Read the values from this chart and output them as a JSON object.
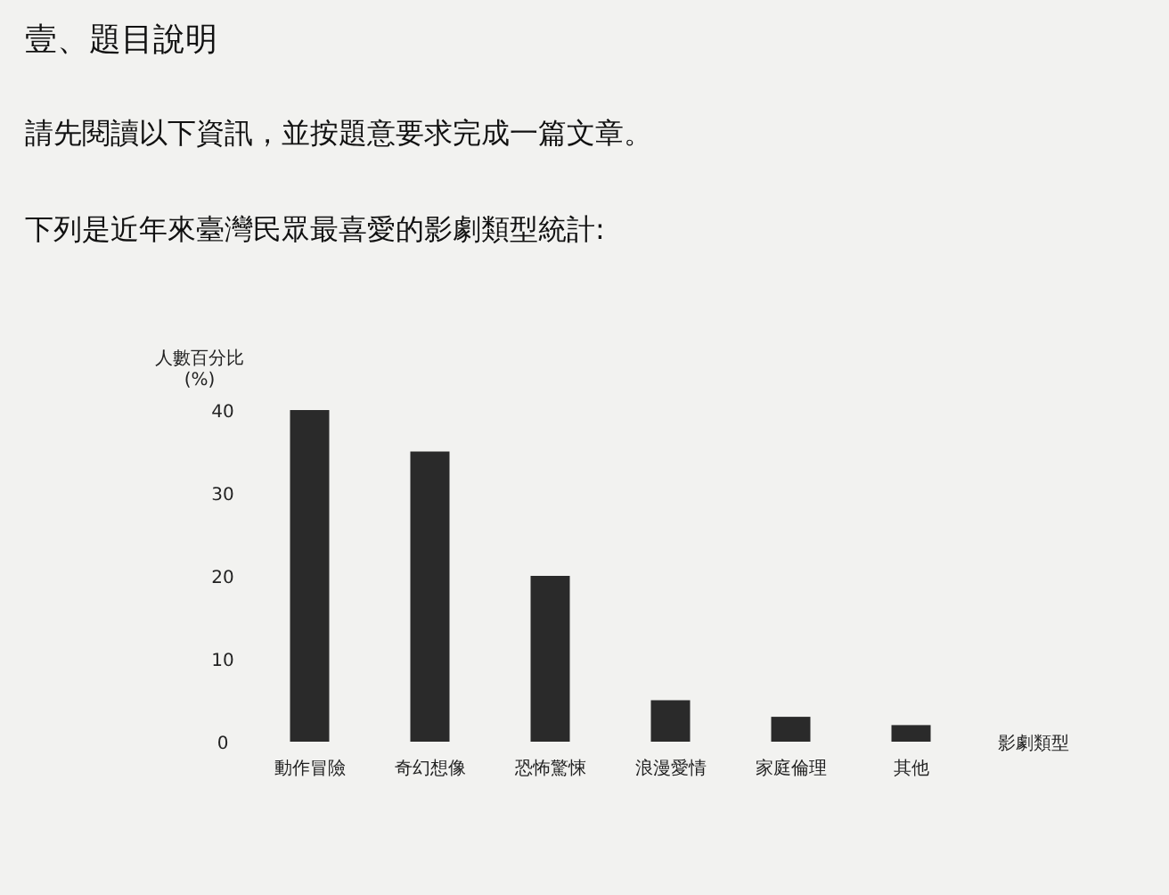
{
  "chart_data": {
    "type": "bar",
    "title": "下列是近年來臺灣民眾最喜愛的影劇類型統計:",
    "annotations": [
      "壹、題目說明",
      "請先閱讀以下資訊，並按題意要求完成一篇文章。"
    ],
    "ylabel": "人數百分比 (%)",
    "xlabel": "影劇類型",
    "categories": [
      "動作冒險",
      "奇幻想像",
      "恐怖驚悚",
      "浪漫愛情",
      "家庭倫理",
      "其他"
    ],
    "values": [
      40,
      35,
      20,
      5,
      3,
      2
    ],
    "color": "#2a2a2a",
    "ylim": [
      0,
      40
    ],
    "yticks": [
      0,
      10,
      20,
      30,
      40
    ]
  }
}
